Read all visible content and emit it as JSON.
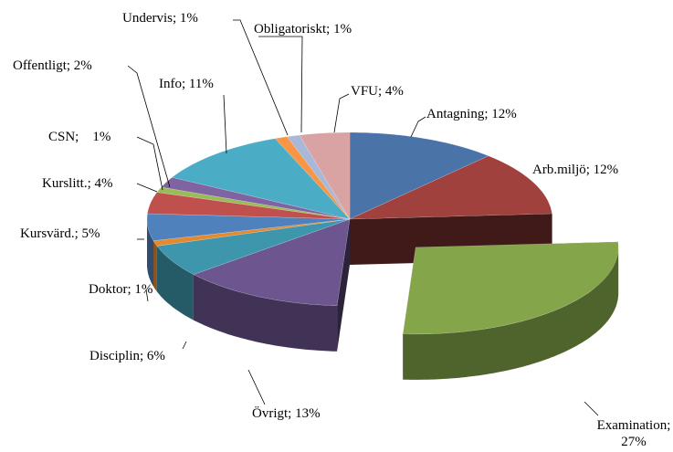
{
  "chart_data": {
    "type": "pie3d",
    "labels": [
      "Antagning; 12%",
      "Arb.miljö; 12%",
      "Examination; 27%",
      "Övrigt; 13%",
      "Disciplin; 6%",
      "Doktor; 1%",
      "Kursvärd.; 5%",
      "Kurslitt.; 4%",
      "CSN;    1%",
      "Offentligt; 2%",
      "Info; 11%",
      "Undervis; 1%",
      "Obligatoriskt; 1%",
      "VFU; 4%"
    ],
    "values": [
      12,
      12,
      27,
      13,
      6,
      1,
      5,
      4,
      1,
      2,
      11,
      1,
      1,
      4
    ],
    "colors": [
      "#4a74a8",
      "#a0413e",
      "#84a54a",
      "#6d5590",
      "#3d96ac",
      "#e38a31",
      "#4f81bd",
      "#c0504d",
      "#9bbb59",
      "#8064a2",
      "#4bacc6",
      "#f79646",
      "#a9b8d9",
      "#d9a3a3"
    ],
    "exploded": 2
  }
}
